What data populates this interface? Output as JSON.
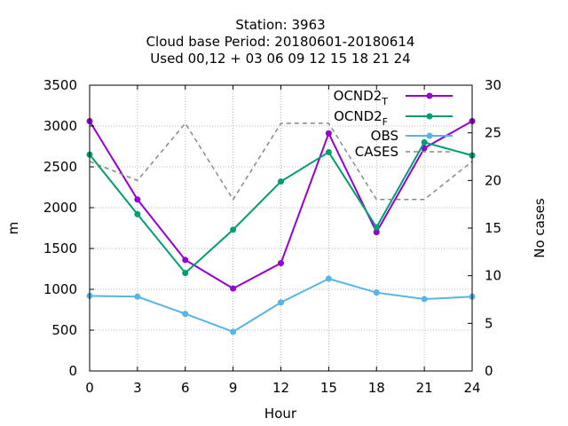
{
  "chart_data": {
    "type": "line",
    "title_lines": [
      "Station:     3963",
      "Cloud base   Period: 20180601-20180614",
      "Used  00,12  + 03 06 09 12 15 18 21 24"
    ],
    "xlabel": "Hour",
    "ylabel": "m",
    "y2label": "No cases",
    "x": [
      0,
      3,
      6,
      9,
      12,
      15,
      18,
      21,
      24
    ],
    "xlim": [
      0,
      24
    ],
    "ylim": [
      0,
      3500
    ],
    "y2lim": [
      0,
      30
    ],
    "x_ticks": [
      0,
      3,
      6,
      9,
      12,
      15,
      18,
      21,
      24
    ],
    "y_ticks": [
      0,
      500,
      1000,
      1500,
      2000,
      2500,
      3000,
      3500
    ],
    "y2_ticks": [
      0,
      5,
      10,
      15,
      20,
      25,
      30
    ],
    "legend_position": "top-right",
    "series": [
      {
        "name": "OCND2",
        "subscript": "T",
        "color": "#9400d3",
        "axis": "y",
        "dash": false,
        "values": [
          3060,
          2100,
          1360,
          1010,
          1320,
          2910,
          1700,
          2730,
          3060
        ]
      },
      {
        "name": "OCND2",
        "subscript": "F",
        "color": "#009e73",
        "axis": "y",
        "dash": false,
        "values": [
          2650,
          1920,
          1200,
          1730,
          2320,
          2680,
          1760,
          2800,
          2640
        ]
      },
      {
        "name": "OBS",
        "subscript": "",
        "color": "#56b4e9",
        "axis": "y",
        "dash": false,
        "values": [
          920,
          910,
          700,
          480,
          840,
          1130,
          960,
          880,
          910
        ]
      },
      {
        "name": "CASES",
        "subscript": "",
        "color": "#888888",
        "axis": "y2",
        "dash": true,
        "values": [
          22,
          20,
          26,
          18,
          26,
          26,
          18,
          18,
          22
        ]
      }
    ]
  }
}
